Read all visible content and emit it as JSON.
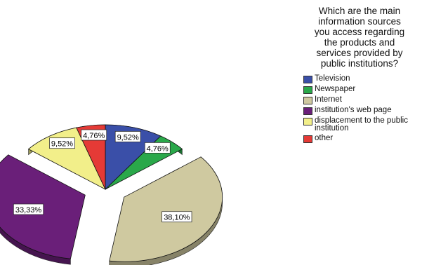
{
  "chart_data": {
    "type": "pie",
    "title": "Which are the main information sources you access regarding the products and services provided by public institutions?",
    "legend_position": "right",
    "slices": [
      {
        "label": "Television",
        "value": 9.52,
        "display": "9,52%",
        "color": "#3a4fa8",
        "exploded": false
      },
      {
        "label": "Newspaper",
        "value": 4.76,
        "display": "4,76%",
        "color": "#2aa84a",
        "exploded": false
      },
      {
        "label": "Internet",
        "value": 38.1,
        "display": "38,10%",
        "color": "#cfc9a0",
        "exploded": true
      },
      {
        "label": "institution's web page",
        "value": 33.33,
        "display": "33,33%",
        "color": "#6a1f79",
        "exploded": true
      },
      {
        "label": "displacement to the public institution",
        "value": 9.52,
        "display": "9,52%",
        "color": "#f2ef8a",
        "exploded": false
      },
      {
        "label": "other",
        "value": 4.76,
        "display": "4,76%",
        "color": "#e53a36",
        "exploded": false
      }
    ]
  }
}
